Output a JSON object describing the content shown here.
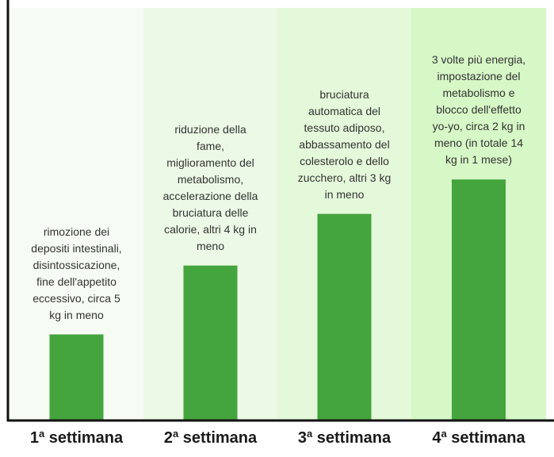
{
  "chart_data": {
    "type": "bar",
    "categories": [
      {
        "num": "1",
        "sup": "a",
        "rest": " settimana"
      },
      {
        "num": "2",
        "sup": "a",
        "rest": " settimana"
      },
      {
        "num": "3",
        "sup": "a",
        "rest": " settimana"
      },
      {
        "num": "4",
        "sup": "a",
        "rest": " settimana"
      }
    ],
    "values": [
      5,
      9,
      12,
      14
    ],
    "ylim": [
      0,
      20
    ],
    "annotations": [
      "rimozione dei depositi intestinali, disintossicazione, fine dell'appetito eccessivo, circa 5 kg in meno",
      "riduzione della fame, miglioramento del metabolismo, accelerazione della bruciatura delle calorie, altri 4 kg in meno",
      "bruciatura automatica del tessuto adiposo, abbassamento del colesterolo e dello zucchero, altri 3 kg in meno",
      "3 volte più energia, impostazione del metabolismo e blocco dell'effetto yo-yo, circa 2 kg in meno (in totale 14 kg in 1 mese)"
    ],
    "bar_color": "#44a43d",
    "panel_colors": [
      "#f6fcf3",
      "#ecf9e6",
      "#e4f8da",
      "#d6f7c6"
    ],
    "axis_color": "#111111"
  }
}
